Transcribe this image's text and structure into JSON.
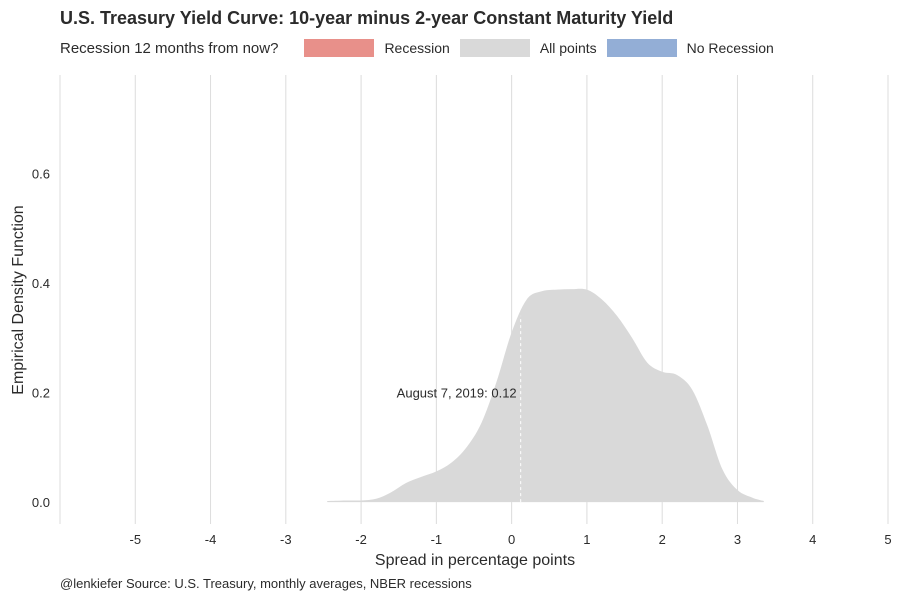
{
  "chart_data": {
    "type": "area",
    "title": "U.S. Treasury Yield Curve: 10-year minus 2-year Constant Maturity Yield",
    "legend_title": "Recession 12 months from now?",
    "legend": [
      {
        "label": "Recession",
        "color": "#e8908a"
      },
      {
        "label": "All points",
        "color": "#d9d9d9"
      },
      {
        "label": "No Recession",
        "color": "#93aed6"
      }
    ],
    "legend_placement": "top",
    "xlabel": "Spread in percentage points",
    "ylabel": "Empirical Density Function",
    "xlim": [
      -6,
      5
    ],
    "ylim": [
      -0.04,
      0.78
    ],
    "x_ticks": [
      -5,
      -4,
      -3,
      -2,
      -1,
      0,
      1,
      2,
      3,
      4,
      5
    ],
    "y_ticks": [
      0.0,
      0.2,
      0.4,
      0.6
    ],
    "y_tick_labels": [
      "0.0",
      "0.2",
      "0.4",
      "0.6"
    ],
    "grid": "vertical major gridlines",
    "series": [
      {
        "name": "All points",
        "color": "#d9d9d9",
        "x": [
          -2.45,
          -2.2,
          -2.0,
          -1.8,
          -1.6,
          -1.4,
          -1.2,
          -1.0,
          -0.8,
          -0.6,
          -0.4,
          -0.2,
          0.0,
          0.2,
          0.4,
          0.6,
          0.8,
          1.0,
          1.2,
          1.4,
          1.6,
          1.8,
          2.0,
          2.2,
          2.4,
          2.6,
          2.8,
          3.0,
          3.2,
          3.35
        ],
        "y": [
          0.002,
          0.003,
          0.003,
          0.006,
          0.018,
          0.035,
          0.046,
          0.056,
          0.072,
          0.1,
          0.145,
          0.22,
          0.31,
          0.37,
          0.385,
          0.388,
          0.389,
          0.388,
          0.37,
          0.34,
          0.3,
          0.255,
          0.238,
          0.232,
          0.205,
          0.14,
          0.06,
          0.022,
          0.008,
          0.002
        ]
      }
    ],
    "annotation": {
      "text": "August 7, 2019: 0.12",
      "x": 0.12,
      "y_top": 0.34
    }
  },
  "caption": "@lenkiefer Source: U.S. Treasury, monthly averages, NBER recessions"
}
